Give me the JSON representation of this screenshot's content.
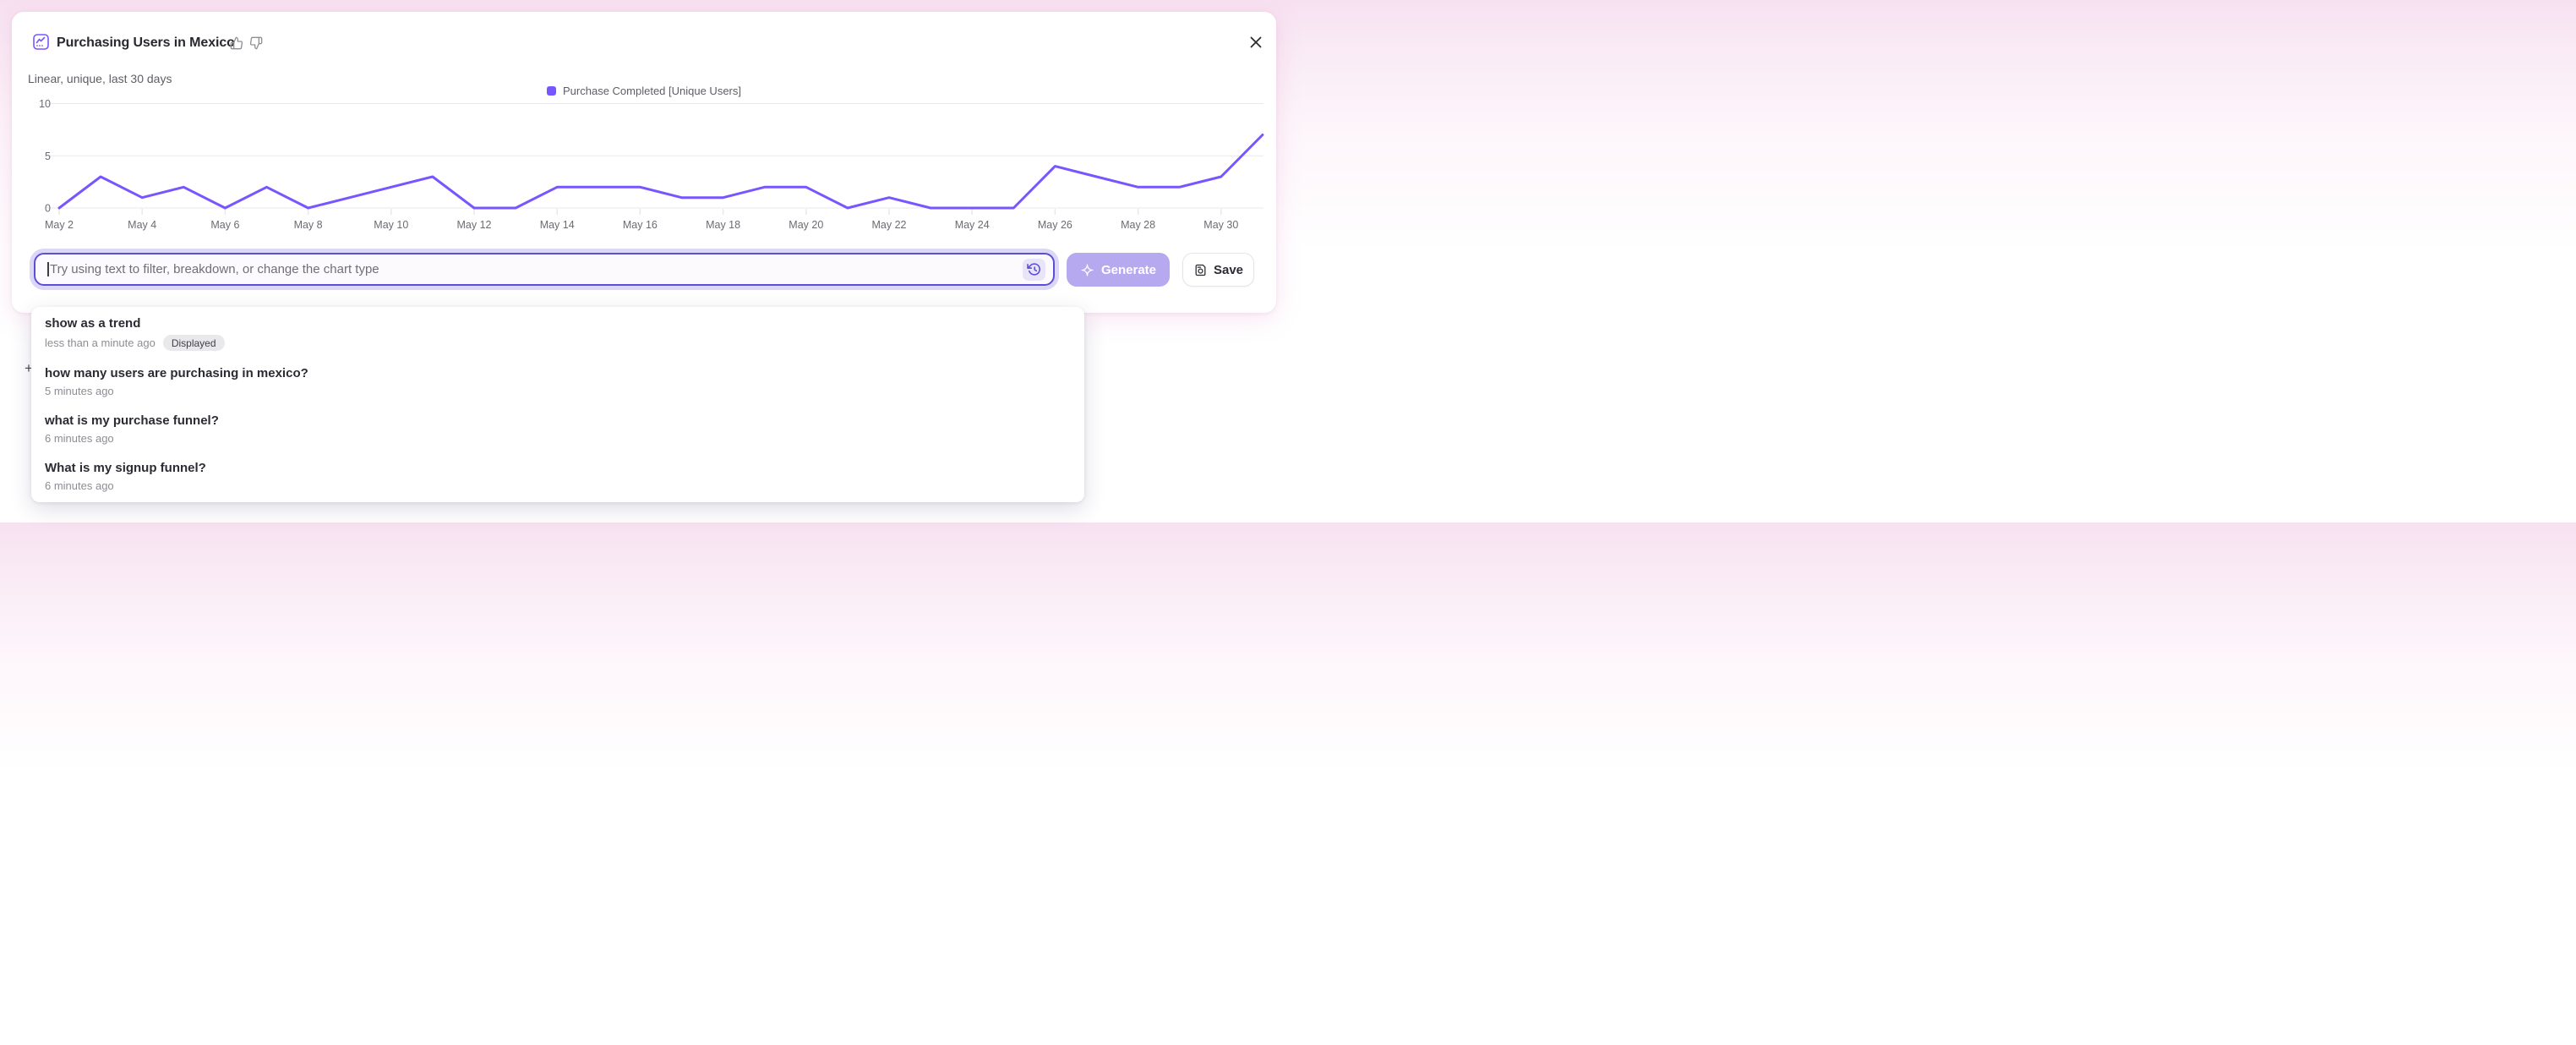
{
  "header": {
    "title": "Purchasing Users in Mexico",
    "subtitle": "Linear, unique, last 30 days"
  },
  "legend": {
    "label": "Purchase Completed [Unique Users]",
    "color": "#7856FF"
  },
  "chart_data": {
    "type": "line",
    "title": "Purchasing Users in Mexico",
    "series": [
      {
        "name": "Purchase Completed [Unique Users]",
        "color": "#7856FF",
        "values": [
          0,
          3,
          1,
          2,
          0,
          2,
          0,
          1,
          2,
          3,
          0,
          0,
          2,
          2,
          2,
          1,
          1,
          2,
          2,
          0,
          1,
          0,
          0,
          0,
          4,
          3,
          2,
          2,
          3,
          7
        ]
      }
    ],
    "x": [
      "May 2",
      "May 3",
      "May 4",
      "May 5",
      "May 6",
      "May 7",
      "May 8",
      "May 9",
      "May 10",
      "May 11",
      "May 12",
      "May 13",
      "May 14",
      "May 15",
      "May 16",
      "May 17",
      "May 18",
      "May 19",
      "May 20",
      "May 21",
      "May 22",
      "May 23",
      "May 24",
      "May 25",
      "May 26",
      "May 27",
      "May 28",
      "May 29",
      "May 30",
      "May 31"
    ],
    "x_tick_labels": [
      "May 2",
      "May 4",
      "May 6",
      "May 8",
      "May 10",
      "May 12",
      "May 14",
      "May 16",
      "May 18",
      "May 20",
      "May 22",
      "May 24",
      "May 26",
      "May 28",
      "May 30"
    ],
    "yticks": [
      0,
      5,
      10
    ],
    "ylim": [
      0,
      10
    ],
    "grid": "horizontal",
    "legend_position": "top-center"
  },
  "composer": {
    "placeholder": "Try using text to filter, breakdown, or change the chart type",
    "generate_label": "Generate",
    "save_label": "Save",
    "plus_glyph": "+"
  },
  "history": {
    "items": [
      {
        "title": "show as a trend",
        "time": "less than a minute ago",
        "badge": "Displayed"
      },
      {
        "title": "how many users are purchasing in mexico?",
        "time": "5 minutes ago",
        "badge": null
      },
      {
        "title": "what is my purchase funnel?",
        "time": "6 minutes ago",
        "badge": null
      },
      {
        "title": "What is my signup funnel?",
        "time": "6 minutes ago",
        "badge": null
      }
    ]
  }
}
